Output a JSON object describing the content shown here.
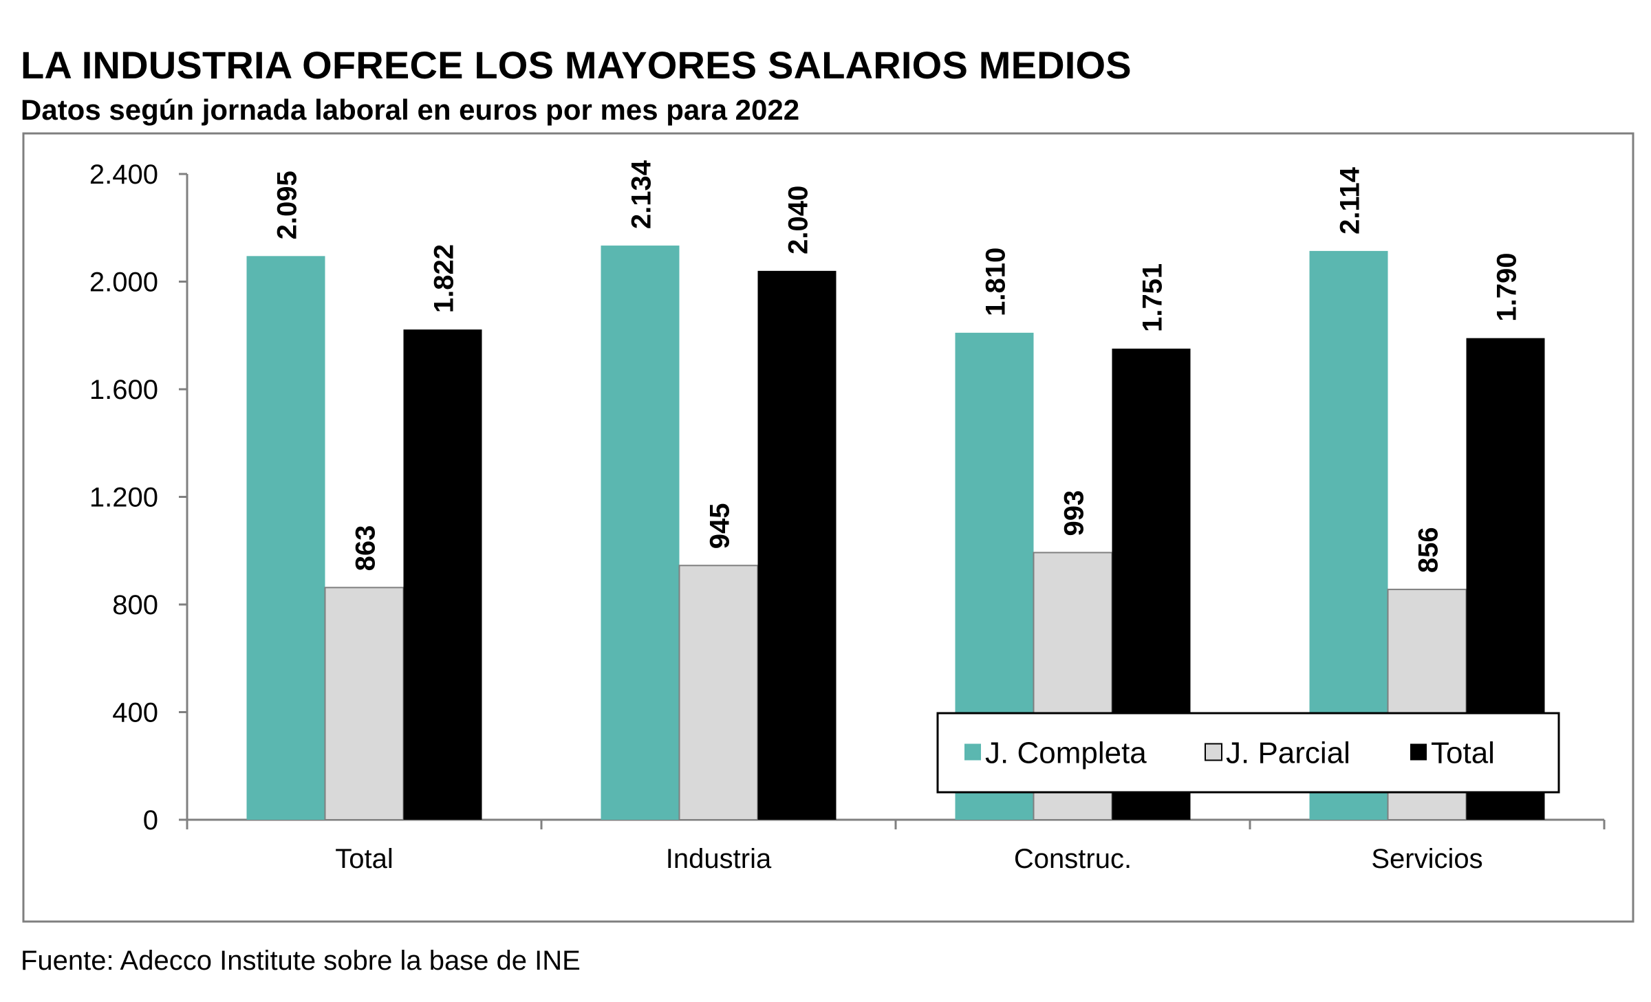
{
  "header": {
    "title": "LA INDUSTRIA OFRECE LOS MAYORES SALARIOS MEDIOS",
    "subtitle": "Datos según jornada laboral en euros por mes para 2022"
  },
  "footer": {
    "source": "Fuente: Adecco Institute sobre la base de INE"
  },
  "colors": {
    "completa": "#5bb7b0",
    "parcial": "#d9d9d9",
    "total": "#000000"
  },
  "chart_data": {
    "type": "bar",
    "title": "LA INDUSTRIA OFRECE LOS MAYORES SALARIOS MEDIOS",
    "subtitle": "Datos según jornada laboral en euros por mes para 2022",
    "xlabel": "",
    "ylabel": "",
    "categories": [
      "Total",
      "Industria",
      "Construc.",
      "Servicios"
    ],
    "series": [
      {
        "name": "J. Completa",
        "values": [
          2095,
          2134,
          1810,
          2114
        ],
        "labels": [
          "2.095",
          "2.134",
          "1.810",
          "2.114"
        ]
      },
      {
        "name": "J. Parcial",
        "values": [
          863,
          945,
          993,
          856
        ],
        "labels": [
          "863",
          "945",
          "993",
          "856"
        ]
      },
      {
        "name": "Total",
        "values": [
          1822,
          2040,
          1751,
          1790
        ],
        "labels": [
          "1.822",
          "2.040",
          "1.751",
          "1.790"
        ]
      }
    ],
    "ylim": [
      0,
      2400
    ],
    "yticks": [
      0,
      400,
      800,
      1200,
      1600,
      2000,
      2400
    ],
    "ytick_labels": [
      "0",
      "400",
      "800",
      "1.200",
      "1.600",
      "2.000",
      "2.400"
    ],
    "grid": false,
    "legend_position": "bottom-right"
  }
}
